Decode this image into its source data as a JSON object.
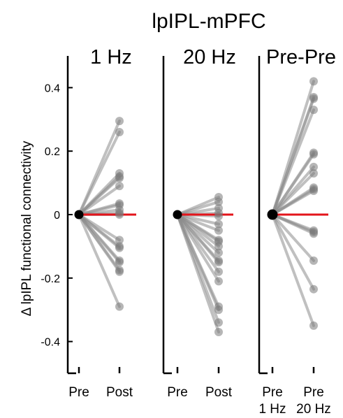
{
  "figure_title": "lpIPL-mPFC",
  "ylabel": "Δ lpIPL functional connectivity",
  "colors": {
    "line": "#8c8c8c",
    "point": "#7a7a7a",
    "baseline": "#e3141b",
    "anchor": "#000000",
    "axis": "#000000"
  },
  "chart_data": [
    {
      "type": "line",
      "title": "1 Hz",
      "x": [
        "Pre",
        "Post"
      ],
      "ylabel": "Δ lpIPL functional connectivity",
      "ylim": [
        -0.5,
        0.5
      ],
      "yticks": [
        0.4,
        0.2,
        0,
        -0.2,
        -0.4
      ],
      "ytick_labels": [
        "0.4",
        "0.2",
        "0",
        "-0.2",
        "-0.4"
      ],
      "pre_value": 0,
      "post_values": [
        0.295,
        0.26,
        0.13,
        0.12,
        0.115,
        0.09,
        0.035,
        0.03,
        0.015,
        0.005,
        0.0,
        -0.08,
        -0.1,
        -0.105,
        -0.145,
        -0.15,
        -0.175,
        -0.18,
        -0.29
      ]
    },
    {
      "type": "line",
      "title": "20 Hz",
      "x": [
        "Pre",
        "Post"
      ],
      "ylim": [
        -0.5,
        0.5
      ],
      "pre_value": 0,
      "post_values": [
        0.055,
        0.04,
        0.02,
        0.005,
        -0.005,
        -0.03,
        -0.05,
        -0.08,
        -0.085,
        -0.1,
        -0.12,
        -0.145,
        -0.15,
        -0.18,
        -0.21,
        -0.29,
        -0.3,
        -0.34,
        -0.37
      ]
    },
    {
      "type": "line",
      "title": "Pre-Pre",
      "x": [
        "Pre\n1 Hz",
        "Pre\n20 Hz"
      ],
      "ylim": [
        -0.5,
        0.5
      ],
      "pre_value": 0,
      "post_values": [
        0.42,
        0.37,
        0.365,
        0.33,
        0.195,
        0.19,
        0.15,
        0.13,
        0.085,
        0.08,
        0.075,
        -0.05,
        -0.055,
        -0.06,
        -0.145,
        -0.235,
        -0.35
      ]
    }
  ]
}
